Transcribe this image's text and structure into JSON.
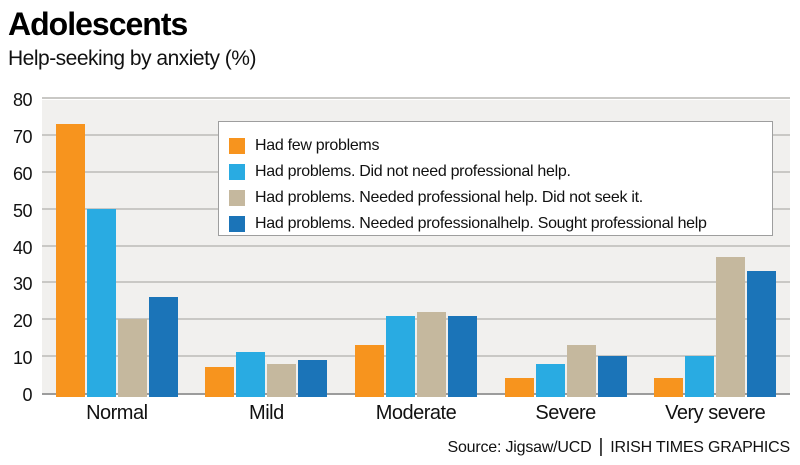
{
  "header": {
    "title": "Adolescents",
    "subtitle": "Help-seeking by anxiety (%)"
  },
  "chart_data": {
    "type": "bar",
    "title": "Adolescents",
    "subtitle": "Help-seeking by anxiety (%)",
    "categories": [
      "Normal",
      "Mild",
      "Moderate",
      "Severe",
      "Very severe"
    ],
    "series": [
      {
        "name": "Had few problems",
        "color": "#F7941E",
        "values": [
          73,
          7,
          13,
          4,
          4
        ]
      },
      {
        "name": "Had problems. Did not need professional help.",
        "color": "#29ABE2",
        "values": [
          50,
          11,
          21,
          8,
          10
        ]
      },
      {
        "name": "Had problems. Needed professional help. Did not seek it.",
        "color": "#C5B89E",
        "values": [
          20,
          8,
          22,
          13,
          37
        ]
      },
      {
        "name": "Had problems. Needed professionalhelp. Sought professional help",
        "color": "#1B74B8",
        "values": [
          26,
          9,
          21,
          10,
          33
        ]
      }
    ],
    "ylim": [
      0,
      80
    ],
    "yticks": [
      0,
      10,
      20,
      30,
      40,
      50,
      60,
      70,
      80
    ],
    "grid": true,
    "legend_position": "top-right-inside",
    "plot_background": "#F1F0EE",
    "gridline_color": "#C9C8C5",
    "axis_line_color": "#9C9C9C"
  },
  "footer": {
    "source": "Source: Jigsaw/UCD",
    "separator": "|",
    "credit": "IRISH TIMES GRAPHICS"
  }
}
